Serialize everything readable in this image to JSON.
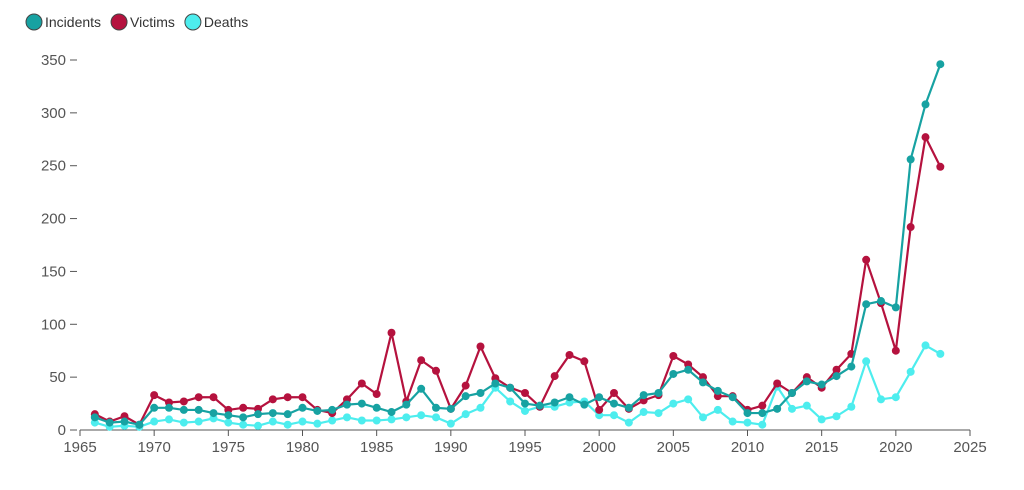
{
  "chart_data": {
    "type": "line",
    "title": "",
    "xlabel": "",
    "ylabel": "",
    "xlim": [
      1965,
      2025
    ],
    "ylim": [
      0,
      350
    ],
    "xticks": [
      1965,
      1970,
      1975,
      1980,
      1985,
      1990,
      1995,
      2000,
      2005,
      2010,
      2015,
      2020,
      2025
    ],
    "yticks": [
      0,
      50,
      100,
      150,
      200,
      250,
      300,
      350
    ],
    "grid": false,
    "legend_position": "top-left",
    "x": [
      1966,
      1967,
      1968,
      1969,
      1970,
      1971,
      1972,
      1973,
      1974,
      1975,
      1976,
      1977,
      1978,
      1979,
      1980,
      1981,
      1982,
      1983,
      1984,
      1985,
      1986,
      1987,
      1988,
      1989,
      1990,
      1991,
      1992,
      1993,
      1994,
      1995,
      1996,
      1997,
      1998,
      1999,
      2000,
      2001,
      2002,
      2003,
      2004,
      2005,
      2006,
      2007,
      2008,
      2009,
      2010,
      2011,
      2012,
      2013,
      2014,
      2015,
      2016,
      2017,
      2018,
      2019,
      2020,
      2021,
      2022,
      2023
    ],
    "series": [
      {
        "name": "Incidents",
        "color": "#17a2a2",
        "values": [
          12,
          7,
          8,
          5,
          21,
          21,
          19,
          19,
          16,
          14,
          12,
          15,
          16,
          15,
          21,
          18,
          19,
          24,
          25,
          21,
          17,
          24,
          39,
          21,
          20,
          32,
          35,
          44,
          40,
          25,
          23,
          26,
          31,
          24,
          31,
          25,
          21,
          33,
          35,
          53,
          57,
          45,
          37,
          31,
          16,
          16,
          20,
          35,
          46,
          43,
          51,
          60,
          119,
          122,
          116,
          256,
          308,
          346
        ]
      },
      {
        "name": "Victims",
        "color": "#b5123e",
        "values": [
          15,
          8,
          13,
          5,
          33,
          26,
          27,
          31,
          31,
          19,
          21,
          20,
          29,
          31,
          31,
          19,
          16,
          29,
          44,
          34,
          92,
          27,
          66,
          56,
          20,
          42,
          79,
          49,
          40,
          35,
          22,
          51,
          71,
          65,
          19,
          35,
          20,
          28,
          33,
          70,
          62,
          50,
          32,
          32,
          19,
          23,
          44,
          35,
          50,
          40,
          57,
          72,
          161,
          120,
          75,
          192,
          277,
          249
        ]
      },
      {
        "name": "Deaths",
        "color": "#4dedee",
        "values": [
          7,
          3,
          4,
          3,
          8,
          10,
          7,
          8,
          11,
          7,
          5,
          4,
          8,
          5,
          8,
          6,
          9,
          12,
          9,
          9,
          10,
          12,
          14,
          12,
          6,
          15,
          21,
          40,
          27,
          18,
          22,
          22,
          26,
          27,
          14,
          14,
          7,
          17,
          16,
          25,
          29,
          12,
          19,
          8,
          7,
          5,
          41,
          20,
          23,
          10,
          13,
          22,
          65,
          29,
          31,
          55,
          80,
          72
        ]
      }
    ]
  }
}
